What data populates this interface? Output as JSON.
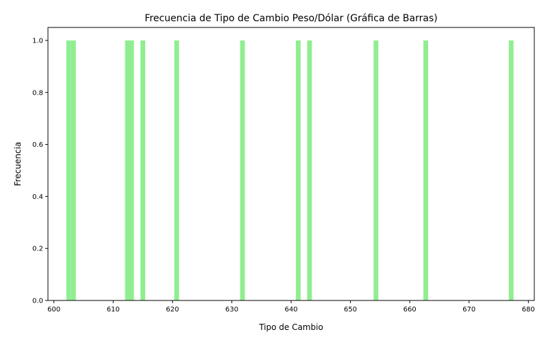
{
  "chart_data": {
    "type": "bar",
    "title": "Frecuencia de Tipo de Cambio Peso/Dólar (Gráfica de Barras)",
    "xlabel": "Tipo de Cambio",
    "ylabel": "Frecuencia",
    "bar_color": "#90ee90",
    "xlim": [
      599,
      681
    ],
    "ylim": [
      0,
      1.05
    ],
    "x": [
      602.5,
      603.3,
      612.4,
      613.1,
      615.0,
      620.7,
      631.8,
      641.2,
      643.1,
      654.3,
      662.7,
      677.1
    ],
    "values": [
      1,
      1,
      1,
      1,
      1,
      1,
      1,
      1,
      1,
      1,
      1,
      1
    ],
    "bar_width": 0.8,
    "x_ticks": [
      600,
      610,
      620,
      630,
      640,
      650,
      660,
      670,
      680
    ],
    "x_tick_labels": [
      "600",
      "610",
      "620",
      "630",
      "640",
      "650",
      "660",
      "670",
      "680"
    ],
    "y_ticks": [
      0.0,
      0.2,
      0.4,
      0.6,
      0.8,
      1.0
    ],
    "y_tick_labels": [
      "0.0",
      "0.2",
      "0.4",
      "0.6",
      "0.8",
      "1.0"
    ],
    "grid": false
  }
}
